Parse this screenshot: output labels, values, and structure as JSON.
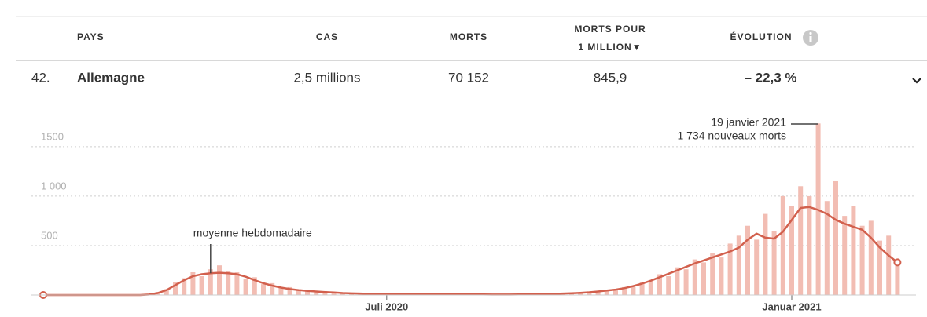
{
  "table": {
    "header": {
      "country": "PAYS",
      "cases": "CAS",
      "deaths": "MORTS",
      "per_million": [
        "MORTS POUR",
        "1 MILLION▼"
      ],
      "evolution": "ÉVOLUTION"
    },
    "row": {
      "rank": "42.",
      "country": "Allemagne",
      "cases": "2,5 millions",
      "deaths": "70 152",
      "per_million": "845,9",
      "evolution": "– 22,3 %"
    }
  },
  "chart_data": {
    "type": "bar",
    "categories": [
      null,
      null,
      null,
      null,
      null,
      null,
      null,
      null,
      null,
      null,
      null,
      null,
      null,
      null,
      null,
      null,
      null,
      null,
      null,
      null,
      null,
      null,
      null,
      null,
      null,
      null,
      null,
      null,
      null,
      null,
      null,
      null,
      null,
      null,
      null,
      null,
      null,
      null,
      null,
      "Juli 2020",
      null,
      null,
      null,
      null,
      null,
      null,
      null,
      null,
      null,
      null,
      null,
      null,
      null,
      null,
      null,
      null,
      null,
      null,
      null,
      null,
      null,
      null,
      null,
      null,
      null,
      null,
      null,
      null,
      null,
      null,
      null,
      null,
      null,
      null,
      null,
      null,
      null,
      null,
      null,
      null,
      null,
      null,
      null,
      null,
      null,
      "Januar 2021",
      null,
      null,
      null,
      null,
      null,
      null,
      null,
      null,
      null,
      null,
      null,
      null
    ],
    "series": [
      {
        "color": "#f2bdb3",
        "values": [
          0,
          0,
          0,
          0,
          0,
          0,
          0,
          0,
          0,
          0,
          0,
          0,
          8,
          30,
          60,
          130,
          170,
          230,
          190,
          260,
          300,
          240,
          230,
          160,
          180,
          110,
          120,
          70,
          80,
          45,
          50,
          30,
          40,
          20,
          25,
          15,
          20,
          10,
          12,
          6,
          9,
          5,
          8,
          4,
          7,
          6,
          5,
          8,
          4,
          6,
          7,
          4,
          6,
          5,
          7,
          6,
          10,
          9,
          14,
          13,
          20,
          25,
          30,
          42,
          40,
          60,
          80,
          85,
          130,
          140,
          210,
          190,
          280,
          260,
          360,
          330,
          420,
          380,
          520,
          600,
          700,
          560,
          820,
          650,
          1000,
          900,
          1100,
          1000,
          1734,
          950,
          1150,
          800,
          900,
          700,
          750,
          550,
          600,
          350
        ]
      },
      {
        "name": "moyenne hebdomadaire",
        "color": "#d2604d",
        "values": [
          0,
          0,
          0,
          0,
          0,
          0,
          0,
          0,
          0,
          0,
          0,
          0,
          5,
          20,
          50,
          100,
          150,
          190,
          210,
          220,
          225,
          220,
          210,
          185,
          150,
          120,
          95,
          75,
          60,
          50,
          42,
          36,
          30,
          25,
          20,
          17,
          15,
          12,
          10,
          8,
          7,
          6,
          6,
          6,
          6,
          6,
          6,
          6,
          6,
          6,
          6,
          5,
          5,
          5,
          6,
          7,
          8,
          10,
          12,
          15,
          18,
          22,
          28,
          36,
          45,
          55,
          70,
          90,
          115,
          145,
          180,
          215,
          250,
          285,
          320,
          350,
          380,
          410,
          440,
          480,
          560,
          620,
          580,
          570,
          640,
          760,
          880,
          890,
          860,
          820,
          760,
          720,
          690,
          660,
          580,
          480,
          400,
          330
        ]
      }
    ],
    "ylim": [
      0,
      1800
    ],
    "yticks": [
      500,
      {
        "value": 1000,
        "label": "1 000"
      },
      1500
    ],
    "grid": true,
    "annotations": [
      {
        "index": 88,
        "lines": [
          "19 janvier 2021",
          "1 734 nouveaux morts"
        ]
      }
    ]
  }
}
